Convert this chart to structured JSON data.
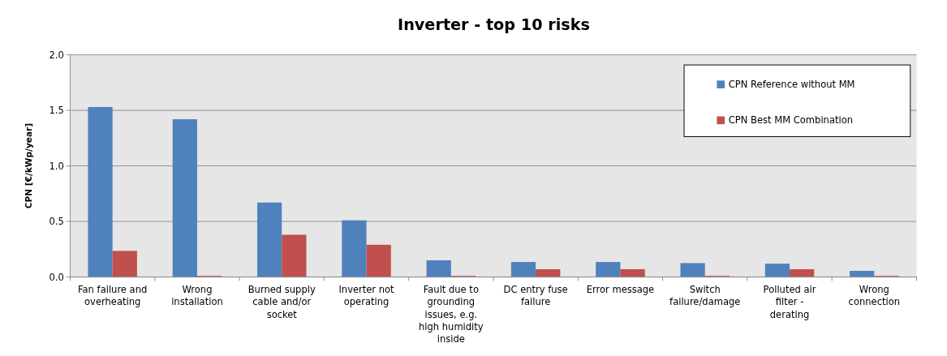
{
  "chart_data": {
    "type": "bar",
    "title": "Inverter - top 10 risks",
    "ylabel": "CPN [€/kWp/year]",
    "categories": [
      "Fan failure and overheating",
      "Wrong installation",
      "Burned supply cable and/or socket",
      "Inverter not operating",
      "Fault due to grounding issues, e.g. high humidity inside",
      "DC entry fuse failure",
      "Error message",
      "Switch failure/damage",
      "Polluted air filter - derating",
      "Wrong connection"
    ],
    "series": [
      {
        "name": "CPN Reference without MM",
        "color": "#4f81bd",
        "values": [
          1.53,
          1.42,
          0.67,
          0.51,
          0.15,
          0.135,
          0.135,
          0.125,
          0.12,
          0.055
        ]
      },
      {
        "name": "CPN Best MM Combination",
        "color": "#c0504d",
        "values": [
          0.235,
          0.01,
          0.38,
          0.29,
          0.01,
          0.07,
          0.07,
          0.01,
          0.07,
          0.01
        ]
      }
    ],
    "ylim": [
      0,
      2
    ],
    "yticks": [
      {
        "value": 0,
        "label": "0.0"
      },
      {
        "value": 0.5,
        "label": "0.5"
      },
      {
        "value": 1,
        "label": "1.0"
      },
      {
        "value": 1.5,
        "label": "1.5"
      },
      {
        "value": 2,
        "label": "2.0"
      }
    ],
    "grid": "y",
    "legend": "top right"
  }
}
